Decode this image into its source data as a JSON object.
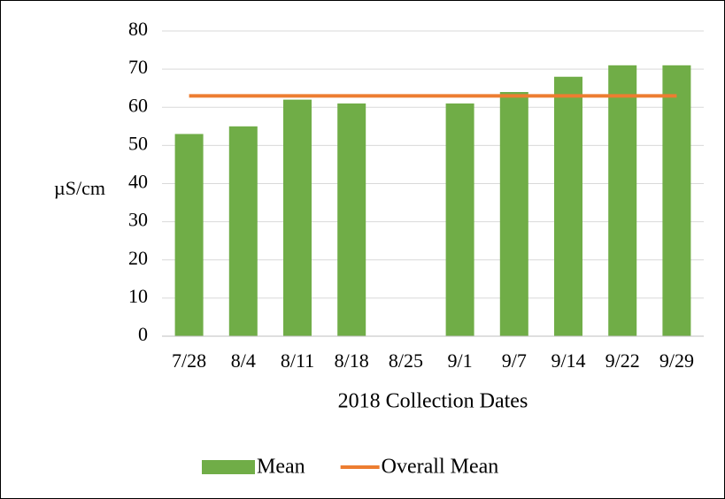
{
  "chart_data": {
    "type": "bar",
    "x_label": "2018 Collection Dates",
    "y_label": "µS/cm",
    "categories": [
      "7/28",
      "8/4",
      "8/11",
      "8/18",
      "8/25",
      "9/1",
      "9/7",
      "9/14",
      "9/22",
      "9/29"
    ],
    "series": [
      {
        "name": "Mean",
        "type": "bar",
        "color": "#70ad47",
        "values": [
          53,
          55,
          62,
          61,
          null,
          61,
          64,
          68,
          71,
          71
        ]
      },
      {
        "name": "Overall Mean",
        "type": "line",
        "color": "#ed7d31",
        "values": [
          63,
          63,
          63,
          63,
          63,
          63,
          63,
          63,
          63,
          63
        ]
      }
    ],
    "ylim": [
      0,
      80
    ],
    "yticks": [
      0,
      10,
      20,
      30,
      40,
      50,
      60,
      70,
      80
    ],
    "grid": true,
    "legend": "bottom"
  }
}
